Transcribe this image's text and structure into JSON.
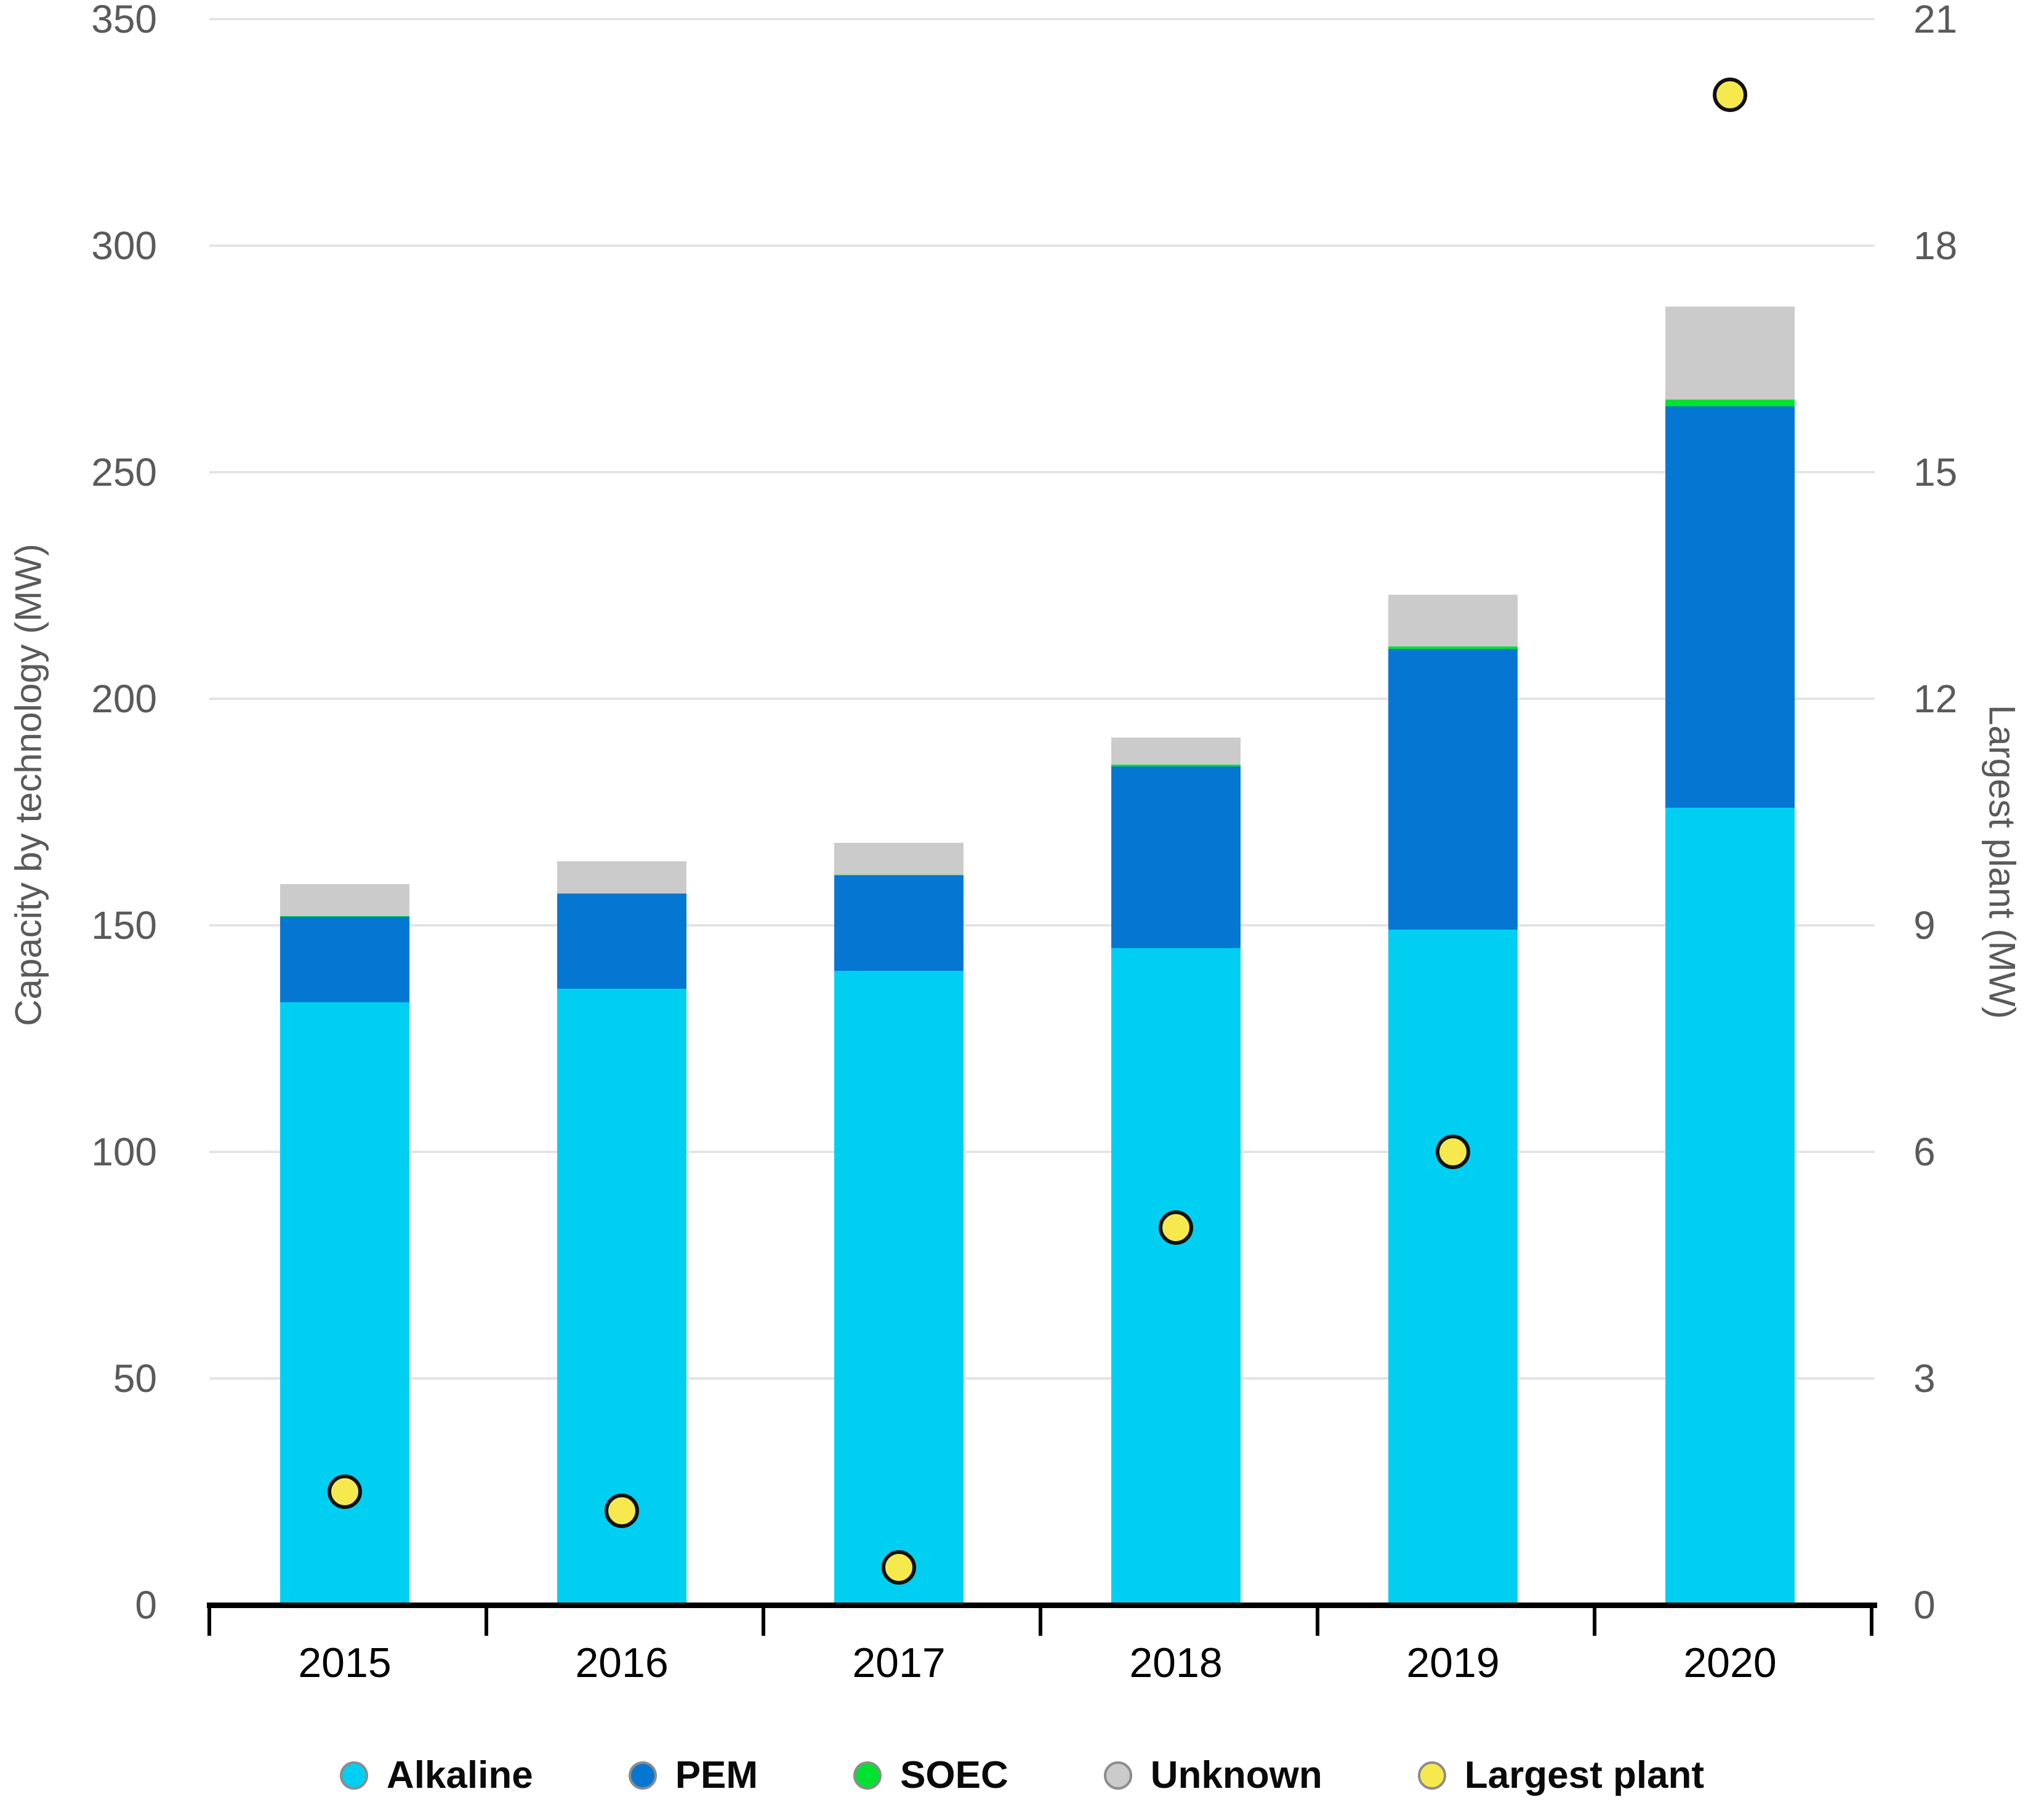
{
  "chart_data": {
    "type": "bar",
    "subtype": "stacked-bars-with-scatter-overlay",
    "categories": [
      "2015",
      "2016",
      "2017",
      "2018",
      "2019",
      "2020"
    ],
    "series": [
      {
        "name": "Alkaline",
        "axis": "left",
        "color": "#00CFF2",
        "values": [
          133,
          136,
          140,
          145,
          149,
          176
        ]
      },
      {
        "name": "PEM",
        "axis": "left",
        "color": "#0577D2",
        "values": [
          19,
          21,
          21,
          40,
          62,
          88.5
        ]
      },
      {
        "name": "SOEC",
        "axis": "left",
        "color": "#00E232",
        "values": [
          0.1,
          0.1,
          0.2,
          0.4,
          0.5,
          1.5
        ]
      },
      {
        "name": "Unknown",
        "axis": "left",
        "color": "#CBCBCB",
        "values": [
          7,
          7,
          7,
          6,
          11.5,
          20.5
        ]
      }
    ],
    "scatter": {
      "name": "Largest plant",
      "axis": "right",
      "fill_color": "#F6E94E",
      "border_color": "#111111",
      "values": [
        1.5,
        1.25,
        0.5,
        5,
        6,
        20
      ]
    },
    "left_axis": {
      "label": "Capacity by technology (MW)",
      "min": 0,
      "max": 350,
      "ticks": [
        0,
        50,
        100,
        150,
        200,
        250,
        300,
        350
      ]
    },
    "right_axis": {
      "label": "Largest plant (MW)",
      "min": 0,
      "max": 21,
      "ticks": [
        0,
        3,
        6,
        9,
        12,
        15,
        18,
        21
      ]
    },
    "grid": true,
    "legend_position": "bottom",
    "legend": [
      "Alkaline",
      "PEM",
      "SOEC",
      "Unknown",
      "Largest plant"
    ]
  },
  "colors": {
    "background": "#FFFFFF",
    "gridline": "#E4E4E4",
    "axis_line": "#000000",
    "tick_text": "#5A5A5A",
    "category_text": "#000000",
    "legend_text": "#0A0A0A",
    "legend_marker_border": "#8C8C8C"
  }
}
